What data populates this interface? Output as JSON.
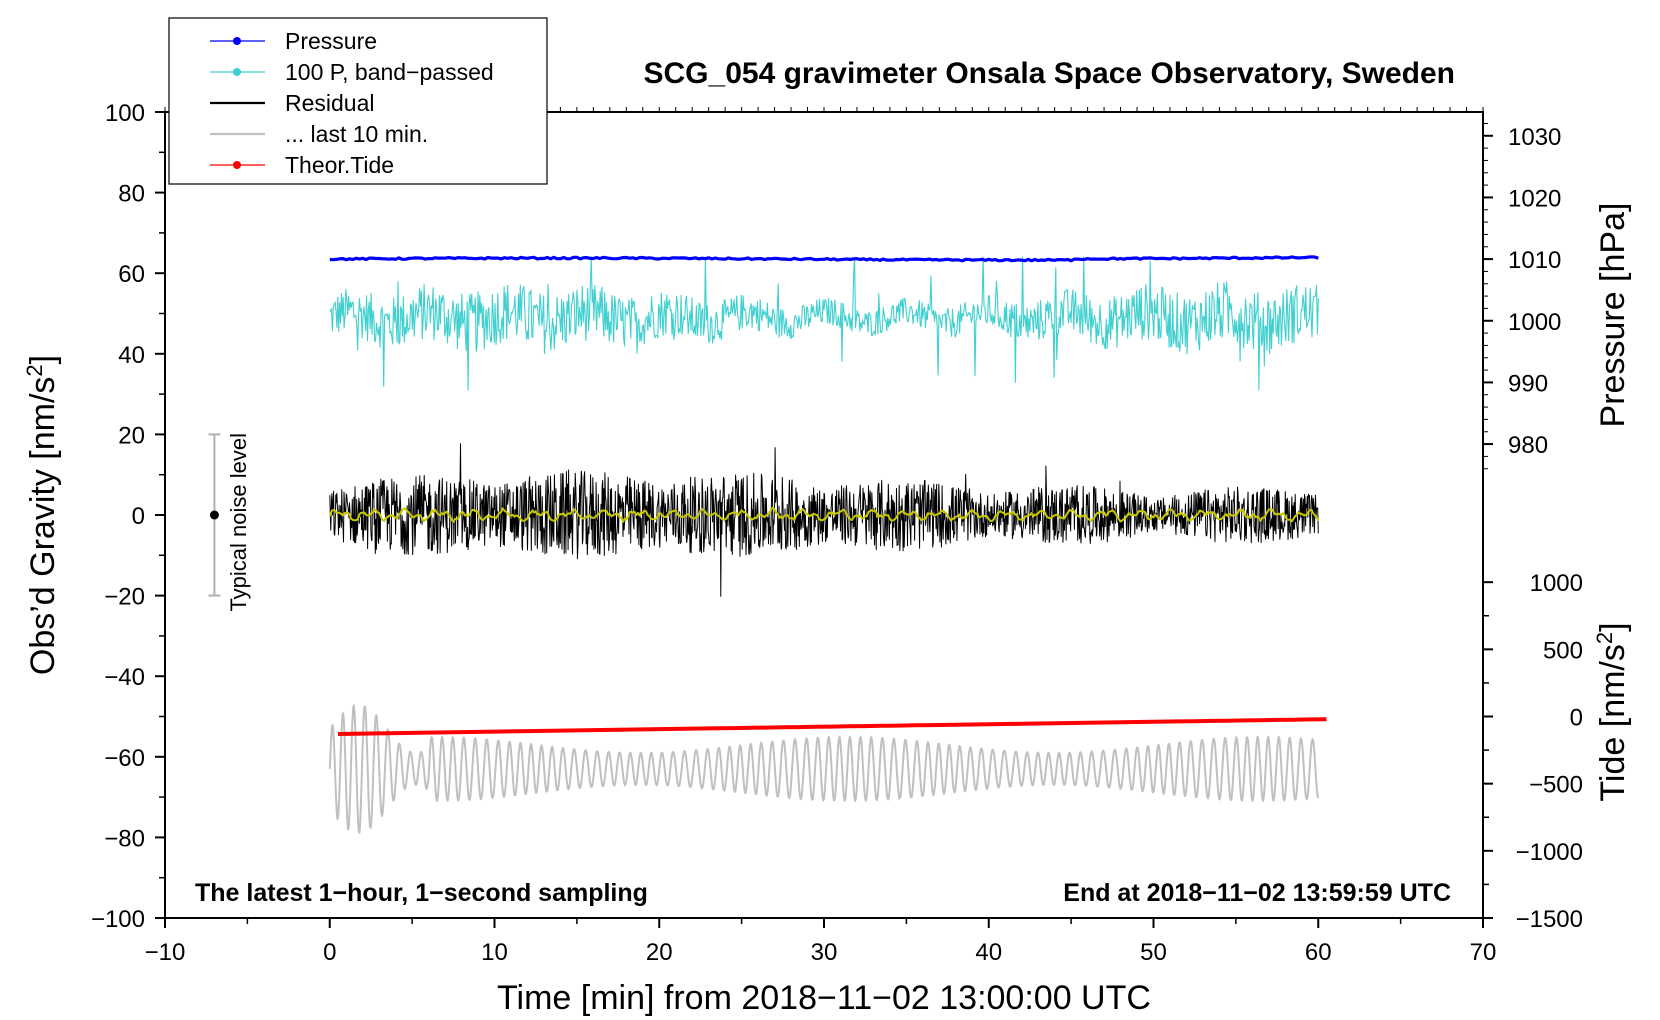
{
  "chart_data": {
    "type": "line",
    "title": "SCG_054 gravimeter Onsala Space Observatory, Sweden",
    "xlabel": "Time [min] from 2018−11−02 13:00:00 UTC",
    "ylabel_left": "Obs’d Gravity [nm/s",
    "ylabel_left_sup": "2",
    "ylabel_left_suffix": "]",
    "ylabel_pressure": "Pressure [hPa]",
    "ylabel_tide": "Tide [nm/s",
    "ylabel_tide_sup": "2",
    "ylabel_tide_suffix": "]",
    "xlim": [
      -10,
      70
    ],
    "ylim_left": [
      -100,
      100
    ],
    "x_ticks": [
      -10,
      0,
      10,
      20,
      30,
      40,
      50,
      60,
      70
    ],
    "x_tick_labels": [
      "−10",
      "0",
      "10",
      "20",
      "30",
      "40",
      "50",
      "60",
      "70"
    ],
    "y_left_ticks": [
      100,
      80,
      60,
      40,
      20,
      0,
      -20,
      -40,
      -60,
      -80,
      -100
    ],
    "y_left_tick_labels": [
      "100",
      "80",
      "60",
      "40",
      "20",
      "0",
      "−20",
      "−40",
      "−60",
      "−80",
      "−100"
    ],
    "pressure_axis": {
      "ticks": [
        1030,
        1020,
        1010,
        1000,
        990,
        980
      ],
      "tick_labels": [
        "1030",
        "1020",
        "1010",
        "1000",
        "990",
        "980"
      ],
      "left_equivalent_at_1010": 63.5,
      "left_units_per_hpa": 1.53
    },
    "tide_axis": {
      "ticks": [
        1000,
        500,
        0,
        -500,
        -1000,
        -1500
      ],
      "tick_labels": [
        "1000",
        "500",
        "0",
        "−500",
        "−1000",
        "−1500"
      ],
      "left_equivalent_at_0": -50,
      "left_units_per_nms2": 0.03333
    },
    "grid": false,
    "legend_placement": "top-left",
    "legend": [
      {
        "label": "Pressure",
        "color": "#0000ff",
        "marker": "dot"
      },
      {
        "label": "100 P, band−passed",
        "color": "#40d0d0",
        "marker": "dot"
      },
      {
        "label": "Residual",
        "color": "#000000",
        "marker": "none"
      },
      {
        "label": "... last 10 min.",
        "color": "#c0c0c0",
        "marker": "none"
      },
      {
        "label": "Theor.Tide",
        "color": "#ff0000",
        "marker": "dot"
      }
    ],
    "series": [
      {
        "key": "pressure",
        "color": "#0000ff",
        "x_range": [
          0,
          60
        ],
        "approx_value_hpa": 1010.1,
        "approx_left_value": 63.5
      },
      {
        "key": "bandpassed",
        "color": "#40d0d0",
        "x_range": [
          0,
          60
        ],
        "center_left_value": 49,
        "range_left_value": [
          31,
          64
        ]
      },
      {
        "key": "residual",
        "color": "#000000",
        "x_range": [
          0,
          60
        ],
        "center_left_value": 0,
        "range_left_value": [
          -21,
          22
        ]
      },
      {
        "key": "smoothed_residual",
        "color": "#c8c800",
        "x_range": [
          0,
          60
        ],
        "center_left_value": 0
      },
      {
        "key": "tide",
        "color": "#ff0000",
        "x_range": [
          0.5,
          60.5
        ],
        "y_start_tide": -130,
        "y_end_tide": -20
      },
      {
        "key": "last10",
        "color": "#c0c0c0",
        "x_range": [
          0,
          60
        ],
        "center_left_value": -63,
        "range_left_value": [
          -83,
          -40
        ]
      }
    ],
    "noise_bar": {
      "label": "Typical noise level",
      "x": -7,
      "center": 0,
      "half_range": 20
    },
    "footer_left": "The latest 1−hour, 1−second sampling",
    "footer_right": "End at 2018−11−02 13:59:59 UTC"
  }
}
